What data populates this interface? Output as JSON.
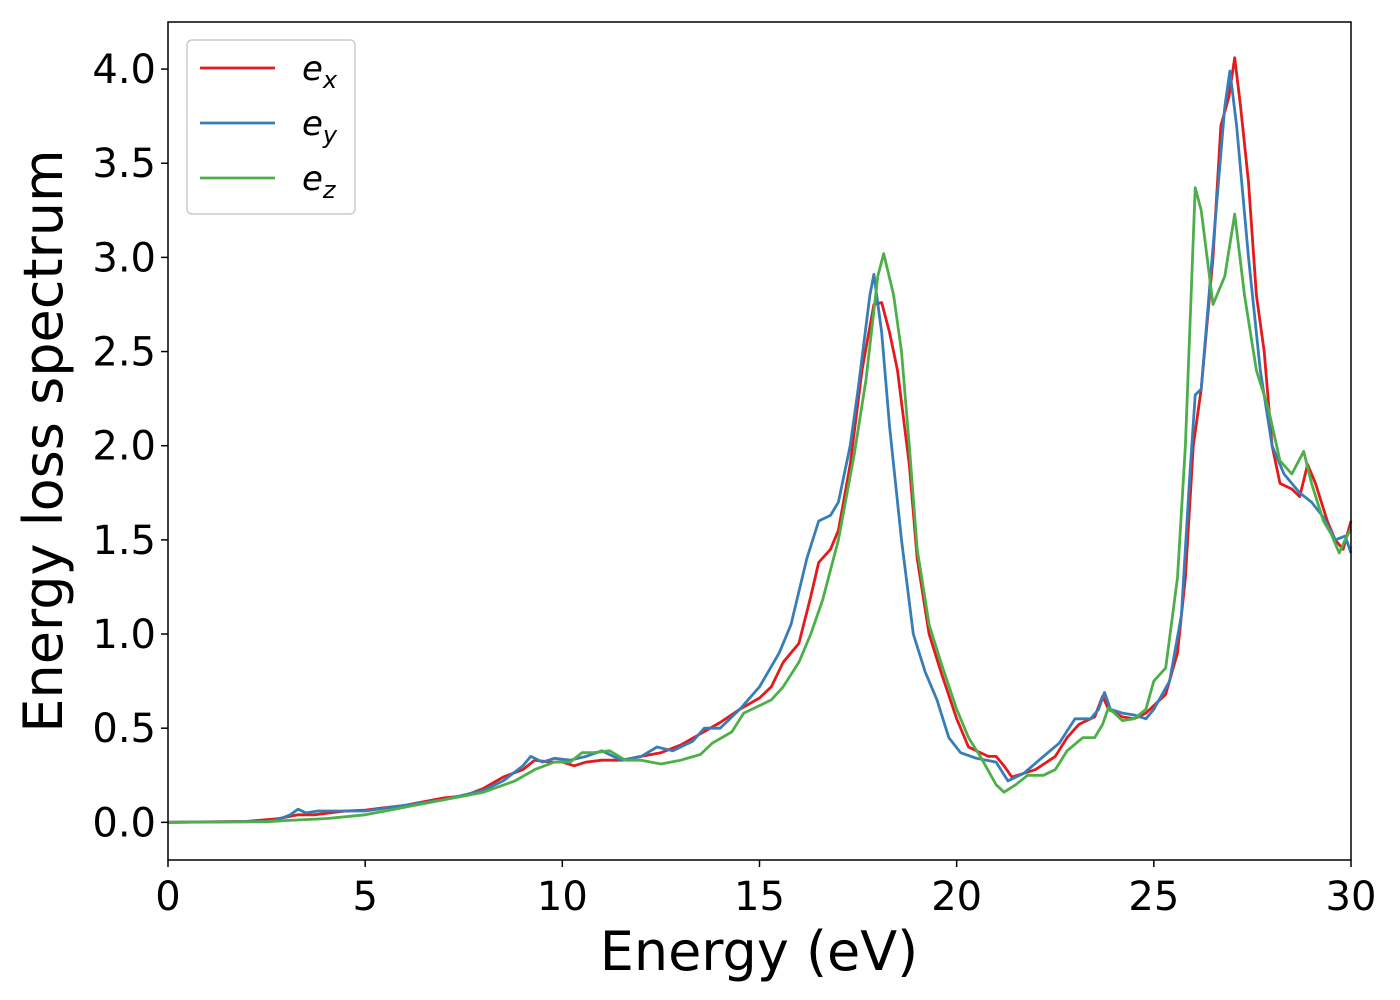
{
  "chart_data": {
    "type": "line",
    "title": "",
    "xlabel": "Energy (eV)",
    "ylabel": "Energy loss spectrum",
    "xlim": [
      0,
      30
    ],
    "ylim": [
      -0.2,
      4.25
    ],
    "xticks": [
      0,
      5,
      10,
      15,
      20,
      25,
      30
    ],
    "yticks": [
      0.0,
      0.5,
      1.0,
      1.5,
      2.0,
      2.5,
      3.0,
      3.5,
      4.0
    ],
    "xtick_labels": [
      "0",
      "5",
      "10",
      "15",
      "20",
      "25",
      "30"
    ],
    "ytick_labels": [
      "0.0",
      "0.5",
      "1.0",
      "1.5",
      "2.0",
      "2.5",
      "3.0",
      "3.5",
      "4.0"
    ],
    "grid": false,
    "legend": "top-left",
    "series": [
      {
        "name": "e_x",
        "legend_base": "e",
        "legend_sub": "x",
        "color": "#e41a1c",
        "points": [
          [
            0,
            0
          ],
          [
            2,
            0.005
          ],
          [
            2.8,
            0.02
          ],
          [
            3.3,
            0.04
          ],
          [
            3.7,
            0.04
          ],
          [
            4.5,
            0.06
          ],
          [
            5,
            0.065
          ],
          [
            6,
            0.09
          ],
          [
            7,
            0.13
          ],
          [
            7.5,
            0.14
          ],
          [
            8,
            0.18
          ],
          [
            8.5,
            0.24
          ],
          [
            9,
            0.28
          ],
          [
            9.3,
            0.33
          ],
          [
            9.7,
            0.32
          ],
          [
            10,
            0.32
          ],
          [
            10.3,
            0.3
          ],
          [
            10.6,
            0.32
          ],
          [
            11,
            0.33
          ],
          [
            11.5,
            0.33
          ],
          [
            12,
            0.35
          ],
          [
            12.5,
            0.37
          ],
          [
            13,
            0.41
          ],
          [
            13.5,
            0.47
          ],
          [
            14,
            0.53
          ],
          [
            14.5,
            0.6
          ],
          [
            15,
            0.66
          ],
          [
            15.3,
            0.72
          ],
          [
            15.6,
            0.85
          ],
          [
            16,
            0.95
          ],
          [
            16.3,
            1.2
          ],
          [
            16.5,
            1.38
          ],
          [
            16.8,
            1.45
          ],
          [
            17,
            1.55
          ],
          [
            17.3,
            1.9
          ],
          [
            17.6,
            2.4
          ],
          [
            17.9,
            2.75
          ],
          [
            18.1,
            2.76
          ],
          [
            18.3,
            2.6
          ],
          [
            18.5,
            2.4
          ],
          [
            18.8,
            1.9
          ],
          [
            19,
            1.4
          ],
          [
            19.3,
            1.0
          ],
          [
            19.6,
            0.8
          ],
          [
            20,
            0.55
          ],
          [
            20.3,
            0.4
          ],
          [
            20.8,
            0.35
          ],
          [
            21,
            0.35
          ],
          [
            21.2,
            0.3
          ],
          [
            21.4,
            0.24
          ],
          [
            22,
            0.28
          ],
          [
            22.5,
            0.35
          ],
          [
            22.8,
            0.45
          ],
          [
            23.1,
            0.52
          ],
          [
            23.5,
            0.56
          ],
          [
            23.7,
            0.67
          ],
          [
            23.85,
            0.6
          ],
          [
            24.2,
            0.56
          ],
          [
            24.5,
            0.55
          ],
          [
            24.8,
            0.58
          ],
          [
            25.3,
            0.68
          ],
          [
            25.6,
            0.9
          ],
          [
            25.8,
            1.3
          ],
          [
            26,
            2.0
          ],
          [
            26.2,
            2.3
          ],
          [
            26.5,
            3.0
          ],
          [
            26.7,
            3.7
          ],
          [
            26.9,
            3.85
          ],
          [
            27.05,
            4.06
          ],
          [
            27.2,
            3.8
          ],
          [
            27.4,
            3.4
          ],
          [
            27.6,
            2.8
          ],
          [
            27.8,
            2.5
          ],
          [
            28,
            2.0
          ],
          [
            28.2,
            1.8
          ],
          [
            28.5,
            1.77
          ],
          [
            28.7,
            1.73
          ],
          [
            28.9,
            1.9
          ],
          [
            29.1,
            1.8
          ],
          [
            29.4,
            1.6
          ],
          [
            29.6,
            1.5
          ],
          [
            29.8,
            1.45
          ],
          [
            30,
            1.6
          ]
        ]
      },
      {
        "name": "e_y",
        "legend_base": "e",
        "legend_sub": "y",
        "color": "#377eb8",
        "points": [
          [
            0,
            0
          ],
          [
            2.5,
            0.005
          ],
          [
            2.8,
            0.015
          ],
          [
            3.1,
            0.04
          ],
          [
            3.3,
            0.07
          ],
          [
            3.5,
            0.05
          ],
          [
            3.8,
            0.06
          ],
          [
            4.5,
            0.06
          ],
          [
            5,
            0.06
          ],
          [
            6,
            0.09
          ],
          [
            7,
            0.12
          ],
          [
            8,
            0.17
          ],
          [
            8.5,
            0.22
          ],
          [
            9,
            0.3
          ],
          [
            9.2,
            0.35
          ],
          [
            9.5,
            0.32
          ],
          [
            9.8,
            0.34
          ],
          [
            10.2,
            0.33
          ],
          [
            10.6,
            0.35
          ],
          [
            11,
            0.38
          ],
          [
            11.5,
            0.33
          ],
          [
            12,
            0.35
          ],
          [
            12.4,
            0.4
          ],
          [
            12.8,
            0.38
          ],
          [
            13.3,
            0.43
          ],
          [
            13.6,
            0.5
          ],
          [
            14,
            0.5
          ],
          [
            14.5,
            0.6
          ],
          [
            15,
            0.72
          ],
          [
            15.5,
            0.9
          ],
          [
            15.8,
            1.05
          ],
          [
            16.2,
            1.4
          ],
          [
            16.5,
            1.6
          ],
          [
            16.8,
            1.63
          ],
          [
            17,
            1.7
          ],
          [
            17.3,
            2.0
          ],
          [
            17.5,
            2.3
          ],
          [
            17.8,
            2.8
          ],
          [
            17.9,
            2.91
          ],
          [
            18.1,
            2.6
          ],
          [
            18.3,
            2.1
          ],
          [
            18.6,
            1.5
          ],
          [
            18.9,
            1.0
          ],
          [
            19.2,
            0.8
          ],
          [
            19.5,
            0.65
          ],
          [
            19.8,
            0.45
          ],
          [
            20.1,
            0.37
          ],
          [
            20.5,
            0.34
          ],
          [
            21,
            0.32
          ],
          [
            21.3,
            0.22
          ],
          [
            21.7,
            0.26
          ],
          [
            22.2,
            0.35
          ],
          [
            22.6,
            0.42
          ],
          [
            23,
            0.55
          ],
          [
            23.4,
            0.55
          ],
          [
            23.6,
            0.6
          ],
          [
            23.75,
            0.69
          ],
          [
            23.9,
            0.6
          ],
          [
            24.2,
            0.58
          ],
          [
            24.5,
            0.57
          ],
          [
            24.8,
            0.55
          ],
          [
            25,
            0.6
          ],
          [
            25.4,
            0.75
          ],
          [
            25.7,
            1.1
          ],
          [
            25.9,
            1.8
          ],
          [
            26.05,
            2.27
          ],
          [
            26.2,
            2.3
          ],
          [
            26.4,
            2.8
          ],
          [
            26.6,
            3.3
          ],
          [
            26.8,
            3.8
          ],
          [
            26.93,
            3.99
          ],
          [
            27.1,
            3.7
          ],
          [
            27.4,
            3.0
          ],
          [
            27.7,
            2.4
          ],
          [
            28,
            2.0
          ],
          [
            28.3,
            1.85
          ],
          [
            28.5,
            1.8
          ],
          [
            28.7,
            1.75
          ],
          [
            29,
            1.7
          ],
          [
            29.3,
            1.62
          ],
          [
            29.6,
            1.5
          ],
          [
            29.85,
            1.52
          ],
          [
            30,
            1.43
          ]
        ]
      },
      {
        "name": "e_z",
        "legend_base": "e",
        "legend_sub": "z",
        "color": "#4daf4a",
        "points": [
          [
            0,
            0
          ],
          [
            2.5,
            0.003
          ],
          [
            3,
            0.01
          ],
          [
            4,
            0.02
          ],
          [
            5,
            0.04
          ],
          [
            6,
            0.08
          ],
          [
            7,
            0.12
          ],
          [
            8,
            0.16
          ],
          [
            8.8,
            0.22
          ],
          [
            9.3,
            0.28
          ],
          [
            9.8,
            0.32
          ],
          [
            10.2,
            0.32
          ],
          [
            10.5,
            0.37
          ],
          [
            10.8,
            0.37
          ],
          [
            11.2,
            0.38
          ],
          [
            11.6,
            0.33
          ],
          [
            12,
            0.33
          ],
          [
            12.5,
            0.31
          ],
          [
            13,
            0.33
          ],
          [
            13.5,
            0.36
          ],
          [
            13.8,
            0.42
          ],
          [
            14.3,
            0.48
          ],
          [
            14.6,
            0.58
          ],
          [
            15,
            0.62
          ],
          [
            15.3,
            0.65
          ],
          [
            15.6,
            0.72
          ],
          [
            16,
            0.85
          ],
          [
            16.3,
            1.0
          ],
          [
            16.6,
            1.18
          ],
          [
            17,
            1.5
          ],
          [
            17.4,
            1.95
          ],
          [
            17.7,
            2.35
          ],
          [
            18,
            2.9
          ],
          [
            18.15,
            3.02
          ],
          [
            18.4,
            2.8
          ],
          [
            18.6,
            2.5
          ],
          [
            18.8,
            2.0
          ],
          [
            19,
            1.45
          ],
          [
            19.3,
            1.05
          ],
          [
            19.6,
            0.85
          ],
          [
            20,
            0.6
          ],
          [
            20.3,
            0.45
          ],
          [
            20.6,
            0.35
          ],
          [
            21,
            0.2
          ],
          [
            21.2,
            0.16
          ],
          [
            21.5,
            0.2
          ],
          [
            21.8,
            0.25
          ],
          [
            22.2,
            0.25
          ],
          [
            22.5,
            0.28
          ],
          [
            22.8,
            0.38
          ],
          [
            23.2,
            0.45
          ],
          [
            23.5,
            0.45
          ],
          [
            23.7,
            0.52
          ],
          [
            23.85,
            0.61
          ],
          [
            24.2,
            0.54
          ],
          [
            24.5,
            0.55
          ],
          [
            24.8,
            0.6
          ],
          [
            25,
            0.75
          ],
          [
            25.3,
            0.82
          ],
          [
            25.6,
            1.3
          ],
          [
            25.8,
            2.0
          ],
          [
            26.05,
            3.37
          ],
          [
            26.2,
            3.25
          ],
          [
            26.5,
            2.75
          ],
          [
            26.8,
            2.9
          ],
          [
            27.05,
            3.23
          ],
          [
            27.3,
            2.8
          ],
          [
            27.6,
            2.4
          ],
          [
            27.9,
            2.2
          ],
          [
            28.2,
            1.92
          ],
          [
            28.5,
            1.85
          ],
          [
            28.8,
            1.97
          ],
          [
            29,
            1.8
          ],
          [
            29.3,
            1.6
          ],
          [
            29.5,
            1.53
          ],
          [
            29.7,
            1.43
          ],
          [
            29.85,
            1.5
          ],
          [
            30,
            1.56
          ]
        ]
      }
    ]
  }
}
